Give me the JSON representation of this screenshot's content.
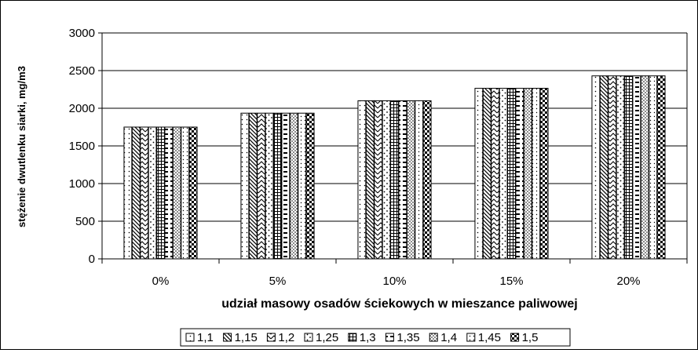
{
  "chart_data": {
    "type": "bar",
    "categories": [
      "0%",
      "5%",
      "10%",
      "15%",
      "20%"
    ],
    "series": [
      {
        "name": "1,1",
        "pattern": "dots",
        "values": [
          1750,
          1935,
          2100,
          2265,
          2430
        ]
      },
      {
        "name": "1,15",
        "pattern": "diagonal",
        "values": [
          1750,
          1935,
          2100,
          2265,
          2430
        ]
      },
      {
        "name": "1,2",
        "pattern": "wave",
        "values": [
          1750,
          1935,
          2100,
          2265,
          2430
        ]
      },
      {
        "name": "1,25",
        "pattern": "dots-sparse",
        "values": [
          1750,
          1935,
          2100,
          2265,
          2430
        ]
      },
      {
        "name": "1,3",
        "pattern": "grid",
        "values": [
          1750,
          1935,
          2100,
          2265,
          2430
        ]
      },
      {
        "name": "1,35",
        "pattern": "dashes",
        "values": [
          1750,
          1935,
          2100,
          2265,
          2430
        ]
      },
      {
        "name": "1,4",
        "pattern": "dots-dense",
        "values": [
          1750,
          1935,
          2100,
          2265,
          2430
        ]
      },
      {
        "name": "1,45",
        "pattern": "dots-fine",
        "values": [
          1750,
          1935,
          2100,
          2265,
          2430
        ]
      },
      {
        "name": "1,5",
        "pattern": "checker",
        "values": [
          1750,
          1935,
          2100,
          2265,
          2430
        ]
      }
    ],
    "xlabel": "udział masowy osadów ściekowych w mieszance paliwowej",
    "ylabel": "stężenie dwutlenku siarki, mg/m3",
    "ylim": [
      0,
      3000
    ],
    "yticks": [
      0,
      500,
      1000,
      1500,
      2000,
      2500,
      3000
    ],
    "grid": true,
    "legend_position": "bottom",
    "colors": {
      "bar_stroke": "#000000",
      "grid": "#000000",
      "background": "#ffffff"
    }
  }
}
